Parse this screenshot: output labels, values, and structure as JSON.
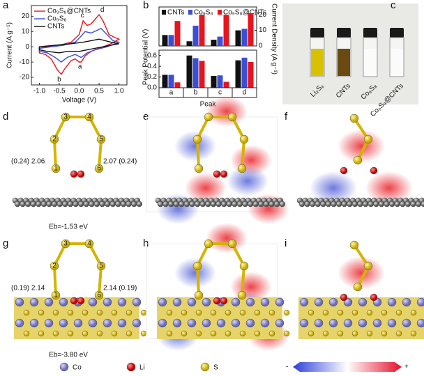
{
  "chart_data": [
    {
      "type": "line",
      "panel": "a",
      "xlabel": "Voltage (V)",
      "ylabel": "Current (A g⁻¹)",
      "xlim": [
        -1.2,
        1.2
      ],
      "ylim": [
        -25,
        27
      ],
      "xticks": [
        {
          "value": -1,
          "label": "-1.0"
        },
        {
          "value": -0.5,
          "label": "-0.5"
        },
        {
          "value": 0,
          "label": "0.0"
        },
        {
          "value": 0.5,
          "label": "0.5"
        },
        {
          "value": 1,
          "label": "1.0"
        }
      ],
      "yticks": [
        -20,
        -10,
        0,
        10,
        20
      ],
      "annotations": [
        "a",
        "b",
        "c",
        "d"
      ],
      "series": [
        {
          "name": "Co₉S₈@CNTs",
          "color": "#e8141b",
          "x": [
            1.0,
            0.8,
            0.5,
            0.3,
            0.15,
            0.05,
            0.0,
            -0.1,
            -0.2,
            -0.35,
            -0.45,
            -0.55,
            -0.7,
            -0.85,
            -1.0,
            -1.0,
            -0.8,
            -0.5,
            -0.2,
            0.0,
            0.1,
            0.2,
            0.3,
            0.5,
            0.6,
            0.75,
            0.9,
            1.0
          ],
          "values": [
            5,
            2,
            -1,
            -3,
            -6,
            -10,
            -10,
            -8,
            -9,
            -14,
            -18,
            -15,
            -8,
            -5,
            -4,
            -1,
            0,
            1,
            3,
            8,
            17,
            14,
            15,
            21,
            17,
            8,
            6,
            5
          ]
        },
        {
          "name": "Co₉S₈",
          "color": "#3b4fd6",
          "x": [
            1.0,
            0.7,
            0.4,
            0.2,
            0.05,
            -0.1,
            -0.3,
            -0.45,
            -0.6,
            -0.8,
            -1.0,
            -1.0,
            -0.7,
            -0.4,
            -0.1,
            0.05,
            0.15,
            0.3,
            0.55,
            0.7,
            0.85,
            1.0
          ],
          "values": [
            3,
            0,
            -2,
            -4,
            -7,
            -5,
            -7,
            -10,
            -7,
            -4,
            -3,
            -1,
            0,
            1,
            3,
            7,
            10,
            9,
            12,
            8,
            4,
            3
          ]
        },
        {
          "name": "CNTs",
          "color": "#111111",
          "x": [
            1.0,
            0.6,
            0.2,
            0.0,
            -0.3,
            -0.5,
            -0.8,
            -1.0,
            -1.0,
            -0.6,
            -0.2,
            0.1,
            0.3,
            0.5,
            0.8,
            1.0
          ],
          "values": [
            2,
            0,
            -2,
            -3,
            -3,
            -4,
            -3,
            -2,
            0,
            1,
            2,
            3,
            4,
            5,
            3,
            2
          ]
        }
      ]
    },
    {
      "type": "bar",
      "panel": "b",
      "xlabel": "Peak",
      "ylabel": "Peak Potential (V)",
      "y2label": "Current Density (A g⁻¹)",
      "categories": [
        "a",
        "b",
        "c",
        "d"
      ],
      "ylim": [
        0,
        0.7
      ],
      "yticks": [
        {
          "value": 0,
          "label": "0.0"
        },
        {
          "value": 0.2,
          "label": "0.2"
        },
        {
          "value": 0.4,
          "label": "0.4"
        },
        {
          "value": 0.6,
          "label": "0.6"
        }
      ],
      "y2lim": [
        0,
        25
      ],
      "y2ticks": [
        0,
        10,
        20
      ],
      "series": [
        {
          "name": "CNTs",
          "color": "#111111",
          "values": [
            0.24,
            0.6,
            0.22,
            0.51
          ]
        },
        {
          "name": "Co₉S₈",
          "color": "#3b4fd6",
          "values": [
            0.24,
            0.55,
            0.23,
            0.56
          ]
        },
        {
          "name": "Co₉S₈@CNTs",
          "color": "#e8141b",
          "values": [
            0.1,
            0.5,
            0.11,
            0.48
          ]
        },
        {
          "name": "CNTs",
          "color": "#111111",
          "axis": "y2",
          "values": [
            7,
            3,
            4,
            10
          ]
        },
        {
          "name": "Co₉S₈",
          "color": "#3b4fd6",
          "axis": "y2",
          "values": [
            7,
            13,
            6,
            11
          ]
        },
        {
          "name": "Co₉S₈@CNTs",
          "color": "#e8141b",
          "axis": "y2",
          "values": [
            16,
            20,
            20,
            21
          ]
        }
      ]
    }
  ],
  "figure": {
    "panel_labels": [
      "a",
      "b",
      "c",
      "d",
      "e",
      "f",
      "g",
      "h",
      "i"
    ],
    "vials": [
      "Li₂S₆",
      "CNTs",
      "Co₉S₈",
      "Co₉S₈@CNTs"
    ],
    "atom_numbers": [
      "1",
      "2",
      "3",
      "4",
      "5",
      "6"
    ],
    "d": {
      "left": "(0.24) 2.06",
      "right": "2.07 (0.24)",
      "energy": "Eb=-1.53 eV"
    },
    "g": {
      "left": "(0.19) 2.14",
      "right": "2.14 (0.19)",
      "energy": "Eb=-3.80 eV"
    },
    "legend": {
      "co": "Co",
      "li": "Li",
      "s": "S",
      "minus": "-",
      "plus": "+"
    }
  }
}
